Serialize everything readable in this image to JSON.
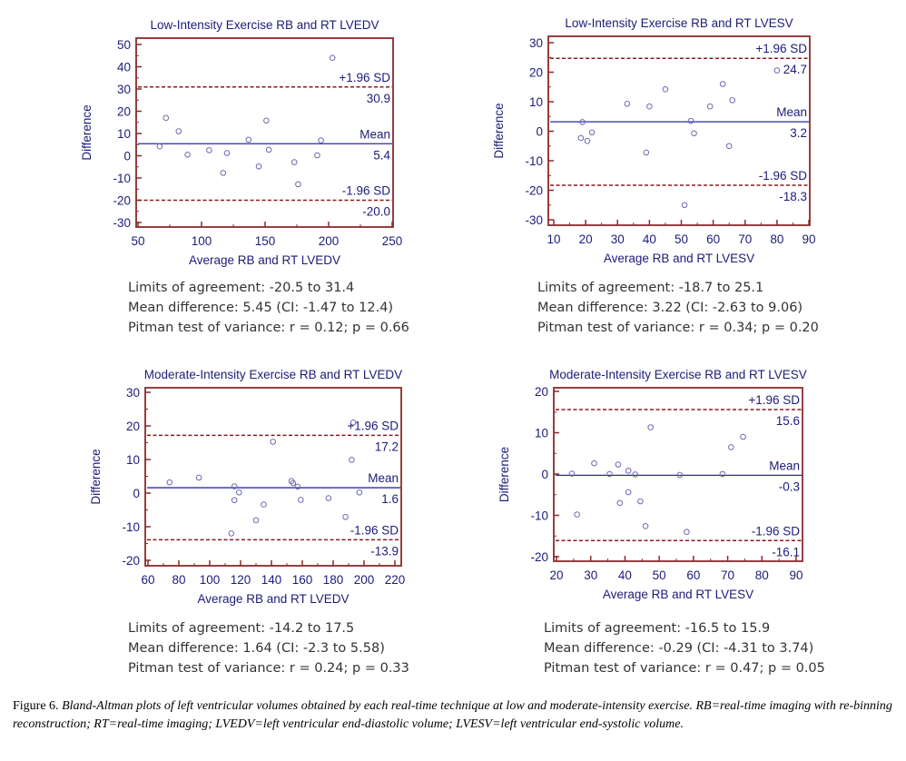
{
  "chart_data": [
    {
      "type": "scatter",
      "title": "Low-Intensity Exercise RB and RT LVEDV",
      "xlabel": "Average RB and RT LVEDV",
      "ylabel": "Difference",
      "xlim": [
        50,
        250
      ],
      "ylim": [
        -30,
        50
      ],
      "xticks": [
        50,
        100,
        150,
        200,
        250
      ],
      "yticks": [
        -30,
        -20,
        -10,
        0,
        10,
        20,
        30,
        40,
        50
      ],
      "grid": false,
      "lines": [
        {
          "name": "+1.96 SD",
          "value": 30.9,
          "style": "dashed",
          "label": "+1.96 SD",
          "value_label": "30.9"
        },
        {
          "name": "Mean",
          "value": 5.4,
          "style": "solid",
          "label": "Mean",
          "value_label": "5.4"
        },
        {
          "name": "-1.96 SD",
          "value": -20.0,
          "style": "dashed",
          "label": "-1.96 SD",
          "value_label": "-20.0"
        }
      ],
      "points": [
        [
          67,
          4.2
        ],
        [
          72,
          17
        ],
        [
          82,
          11
        ],
        [
          89,
          0.5
        ],
        [
          106,
          2.5
        ],
        [
          117,
          -7.7
        ],
        [
          120,
          1.2
        ],
        [
          137,
          7.2
        ],
        [
          145,
          -4.8
        ],
        [
          151,
          15.8
        ],
        [
          153,
          2.7
        ],
        [
          173,
          -2.9
        ],
        [
          176,
          -12.8
        ],
        [
          191,
          0.2
        ],
        [
          194,
          6.9
        ],
        [
          203,
          44
        ]
      ],
      "stats": [
        "Limits of agreement: -20.5 to 31.4",
        "Mean difference: 5.45 (CI: -1.47 to 12.4)",
        "Pitman test of variance: r = 0.12; p = 0.66"
      ]
    },
    {
      "type": "scatter",
      "title": "Low-Intensity Exercise RB and RT LVESV",
      "xlabel": "Average RB and RT LVESV",
      "ylabel": "Difference",
      "xlim": [
        10,
        90
      ],
      "ylim": [
        -30,
        30
      ],
      "xticks": [
        10,
        20,
        30,
        40,
        50,
        60,
        70,
        80,
        90
      ],
      "yticks": [
        -30,
        -20,
        -10,
        0,
        10,
        20,
        30
      ],
      "grid": false,
      "lines": [
        {
          "name": "+1.96 SD",
          "value": 24.7,
          "style": "dashed",
          "label": "+1.96 SD",
          "value_label": "24.7"
        },
        {
          "name": "Mean",
          "value": 3.2,
          "style": "solid",
          "label": "Mean",
          "value_label": "3.2"
        },
        {
          "name": "-1.96 SD",
          "value": -18.3,
          "style": "dashed",
          "label": "-1.96 SD",
          "value_label": "-18.3"
        }
      ],
      "points": [
        [
          18.5,
          -2.3
        ],
        [
          19,
          3.1
        ],
        [
          20.5,
          -3.3
        ],
        [
          22,
          -0.4
        ],
        [
          33,
          9.3
        ],
        [
          39,
          -7.2
        ],
        [
          40,
          8.4
        ],
        [
          45,
          14.2
        ],
        [
          51,
          -25
        ],
        [
          53,
          3.5
        ],
        [
          54,
          -0.7
        ],
        [
          59,
          8.4
        ],
        [
          63,
          16
        ],
        [
          65,
          -5
        ],
        [
          66,
          10.5
        ],
        [
          80,
          20.6
        ]
      ],
      "stats": [
        "Limits of agreement: -18.7 to 25.1",
        "Mean difference: 3.22 (CI: -2.63 to 9.06)",
        "Pitman test of variance: r = 0.34; p = 0.20"
      ]
    },
    {
      "type": "scatter",
      "title": "Moderate-Intensity Exercise RB and RT LVEDV",
      "xlabel": "Average RB and RT LVEDV",
      "ylabel": "Difference",
      "xlim": [
        60,
        220
      ],
      "ylim": [
        -20,
        30
      ],
      "xticks": [
        60,
        80,
        100,
        120,
        140,
        160,
        180,
        200,
        220
      ],
      "yticks": [
        -20,
        -10,
        0,
        10,
        20,
        30
      ],
      "grid": false,
      "lines": [
        {
          "name": "+1.96 SD",
          "value": 17.2,
          "style": "dashed",
          "label": "+1.96 SD",
          "value_label": "17.2"
        },
        {
          "name": "Mean",
          "value": 1.6,
          "style": "solid",
          "label": "Mean",
          "value_label": "1.6"
        },
        {
          "name": "-1.96 SD",
          "value": -13.9,
          "style": "dashed",
          "label": "-1.96 SD",
          "value_label": "-13.9"
        }
      ],
      "points": [
        [
          74,
          3.2
        ],
        [
          93,
          4.6
        ],
        [
          114,
          -12
        ],
        [
          116,
          2.0
        ],
        [
          116,
          -2.1
        ],
        [
          119,
          0.2
        ],
        [
          130,
          -8.1
        ],
        [
          135,
          -3.4
        ],
        [
          141,
          15.3
        ],
        [
          153,
          3.6
        ],
        [
          154,
          3.0
        ],
        [
          157,
          1.9
        ],
        [
          159,
          -2.0
        ],
        [
          177,
          -1.5
        ],
        [
          188,
          -7.1
        ],
        [
          192,
          9.9
        ],
        [
          193,
          21
        ],
        [
          197,
          0.2
        ]
      ],
      "stats": [
        "Limits of agreement: -14.2 to 17.5",
        "Mean difference: 1.64 (CI: -2.3 to 5.58)",
        "Pitman test of variance: r = 0.24; p = 0.33"
      ]
    },
    {
      "type": "scatter",
      "title": "Moderate-Intensity Exercise RB and RT LVESV",
      "xlabel": "Average RB and RT LVESV",
      "ylabel": "Difference",
      "xlim": [
        20,
        90
      ],
      "ylim": [
        -20,
        20
      ],
      "xticks": [
        20,
        30,
        40,
        50,
        60,
        70,
        80,
        90
      ],
      "yticks": [
        -20,
        -10,
        0,
        10,
        20
      ],
      "grid": false,
      "lines": [
        {
          "name": "+1.96 SD",
          "value": 15.6,
          "style": "dashed",
          "label": "+1.96 SD",
          "value_label": "15.6"
        },
        {
          "name": "Mean",
          "value": -0.3,
          "style": "solid",
          "label": "Mean",
          "value_label": "-0.3"
        },
        {
          "name": "-1.96 SD",
          "value": -16.1,
          "style": "dashed",
          "label": "-1.96 SD",
          "value_label": "-16.1"
        }
      ],
      "points": [
        [
          24.5,
          0.1
        ],
        [
          26,
          -9.8
        ],
        [
          31,
          2.6
        ],
        [
          35.5,
          0.0
        ],
        [
          38,
          2.3
        ],
        [
          38.5,
          -7.0
        ],
        [
          41,
          0.8
        ],
        [
          41,
          -4.4
        ],
        [
          43,
          -0.1
        ],
        [
          44.5,
          -6.6
        ],
        [
          46,
          -12.6
        ],
        [
          47.5,
          11.3
        ],
        [
          56,
          -0.2
        ],
        [
          58,
          -14.0
        ],
        [
          68.5,
          0.0
        ],
        [
          71,
          6.5
        ],
        [
          74.5,
          9.0
        ]
      ],
      "stats": [
        "Limits of agreement: -16.5 to 15.9",
        "Mean difference: -0.29 (CI: -4.31 to 3.74)",
        "Pitman test of variance: r = 0.47; p = 0.05"
      ]
    }
  ],
  "caption": {
    "figure_label": "Figure 6.",
    "text": "Bland-Altman plots of left ventricular volumes obtained by each real-time technique at low and moderate-intensity exercise. RB=real-time imaging with re-binning reconstruction; RT=real-time imaging; LVEDV=left ventricular end-diastolic volume; LVESV=left ventricular end-systolic volume."
  },
  "colors": {
    "frame": "#8b2a2a",
    "text": "#1c1c7a",
    "mean_line": "#2a2aa8",
    "sd_line": "#8b1a1a",
    "point": "#6a6ab0"
  }
}
